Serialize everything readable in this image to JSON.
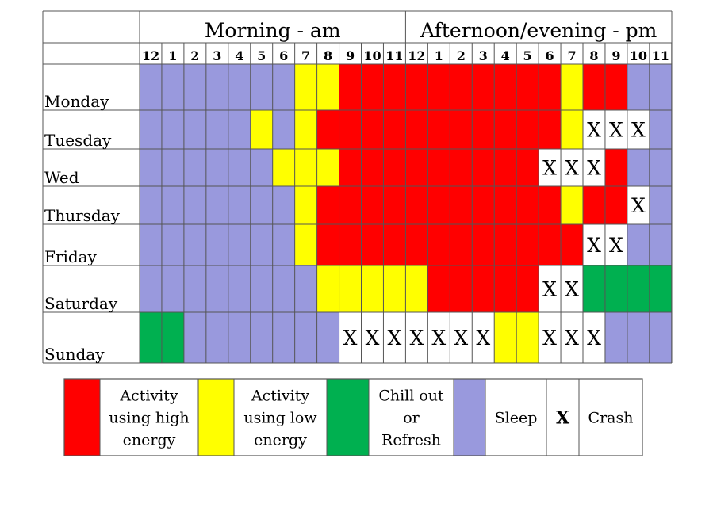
{
  "chart_data": {
    "type": "heatmap",
    "group_headers": [
      "Morning - am",
      "Afternoon/evening - pm"
    ],
    "hours": [
      "12",
      "1",
      "2",
      "3",
      "4",
      "5",
      "6",
      "7",
      "8",
      "9",
      "10",
      "11",
      "12",
      "1",
      "2",
      "3",
      "4",
      "5",
      "6",
      "7",
      "8",
      "9",
      "10",
      "11"
    ],
    "days": [
      "Monday",
      "Tuesday",
      "Wed",
      "Thursday",
      "Friday",
      "Saturday",
      "Sunday"
    ],
    "codes": {
      "S": "sleep",
      "L": "low",
      "H": "high",
      "C": "chill",
      "X": "crash"
    },
    "rows": [
      [
        "S",
        "S",
        "S",
        "S",
        "S",
        "S",
        "S",
        "L",
        "L",
        "H",
        "H",
        "H",
        "H",
        "H",
        "H",
        "H",
        "H",
        "H",
        "H",
        "L",
        "H",
        "H",
        "S",
        "S"
      ],
      [
        "S",
        "S",
        "S",
        "S",
        "S",
        "L",
        "S",
        "L",
        "H",
        "H",
        "H",
        "H",
        "H",
        "H",
        "H",
        "H",
        "H",
        "H",
        "H",
        "L",
        "X",
        "X",
        "X",
        "S"
      ],
      [
        "S",
        "S",
        "S",
        "S",
        "S",
        "S",
        "L",
        "L",
        "L",
        "H",
        "H",
        "H",
        "H",
        "H",
        "H",
        "H",
        "H",
        "H",
        "X",
        "X",
        "X",
        "H",
        "S",
        "S"
      ],
      [
        "S",
        "S",
        "S",
        "S",
        "S",
        "S",
        "S",
        "L",
        "H",
        "H",
        "H",
        "H",
        "H",
        "H",
        "H",
        "H",
        "H",
        "H",
        "H",
        "L",
        "H",
        "H",
        "X",
        "S"
      ],
      [
        "S",
        "S",
        "S",
        "S",
        "S",
        "S",
        "S",
        "L",
        "H",
        "H",
        "H",
        "H",
        "H",
        "H",
        "H",
        "H",
        "H",
        "H",
        "H",
        "H",
        "X",
        "X",
        "S",
        "S"
      ],
      [
        "S",
        "S",
        "S",
        "S",
        "S",
        "S",
        "S",
        "S",
        "L",
        "L",
        "L",
        "L",
        "L",
        "H",
        "H",
        "H",
        "H",
        "H",
        "X",
        "X",
        "C",
        "C",
        "C",
        "C"
      ],
      [
        "C",
        "C",
        "S",
        "S",
        "S",
        "S",
        "S",
        "S",
        "S",
        "X",
        "X",
        "X",
        "X",
        "X",
        "X",
        "X",
        "L",
        "L",
        "X",
        "X",
        "X",
        "S",
        "S",
        "S"
      ]
    ],
    "legend": [
      {
        "key": "high",
        "label": "Activity using high energy",
        "lines": [
          "Activity",
          "using high",
          "energy"
        ]
      },
      {
        "key": "low",
        "label": "Activity using low energy",
        "lines": [
          "Activity",
          "using low",
          "energy"
        ]
      },
      {
        "key": "chill",
        "label": "Chill out or Refresh",
        "lines": [
          "Chill out",
          "or",
          "Refresh"
        ]
      },
      {
        "key": "sleep",
        "label": "Sleep",
        "lines": [
          "Sleep"
        ]
      },
      {
        "key": "crash",
        "label": "Crash",
        "symbol": "X",
        "lines": [
          "Crash"
        ]
      }
    ],
    "crash_symbol": "X",
    "colors": {
      "high": "#ff0000",
      "low": "#ffff00",
      "chill": "#00b050",
      "sleep": "#9999dd",
      "crash": "#ffffff"
    }
  }
}
